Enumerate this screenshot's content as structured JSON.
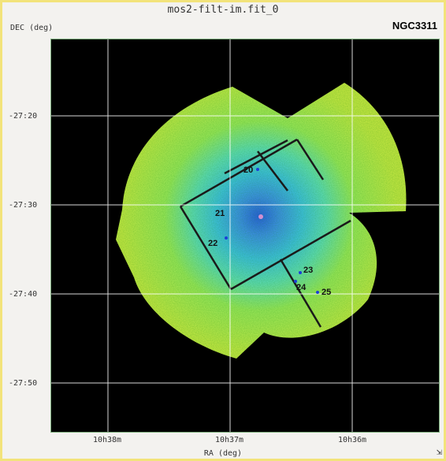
{
  "window": {
    "title": "mos2-filt-im.fit_0",
    "target": "NGC3311"
  },
  "axes": {
    "ylabel": "DEC (deg)",
    "xlabel": "RA (deg)",
    "yticks": [
      "-27:20",
      "-27:30",
      "-27:40",
      "-27:50"
    ],
    "xticks": [
      "10h38m",
      "10h37m",
      "10h36m"
    ]
  },
  "sources": [
    {
      "label": "20"
    },
    {
      "label": "21"
    },
    {
      "label": "22"
    },
    {
      "label": "23"
    },
    {
      "label": "24"
    },
    {
      "label": "25"
    }
  ],
  "colors": {
    "border": "#f2e37a",
    "background": "#000000",
    "grid": "#ffffff",
    "image_outer": "#b9e23f",
    "image_core": "#2f6fe0"
  },
  "icons": {
    "resize": "resize-corner-icon"
  }
}
